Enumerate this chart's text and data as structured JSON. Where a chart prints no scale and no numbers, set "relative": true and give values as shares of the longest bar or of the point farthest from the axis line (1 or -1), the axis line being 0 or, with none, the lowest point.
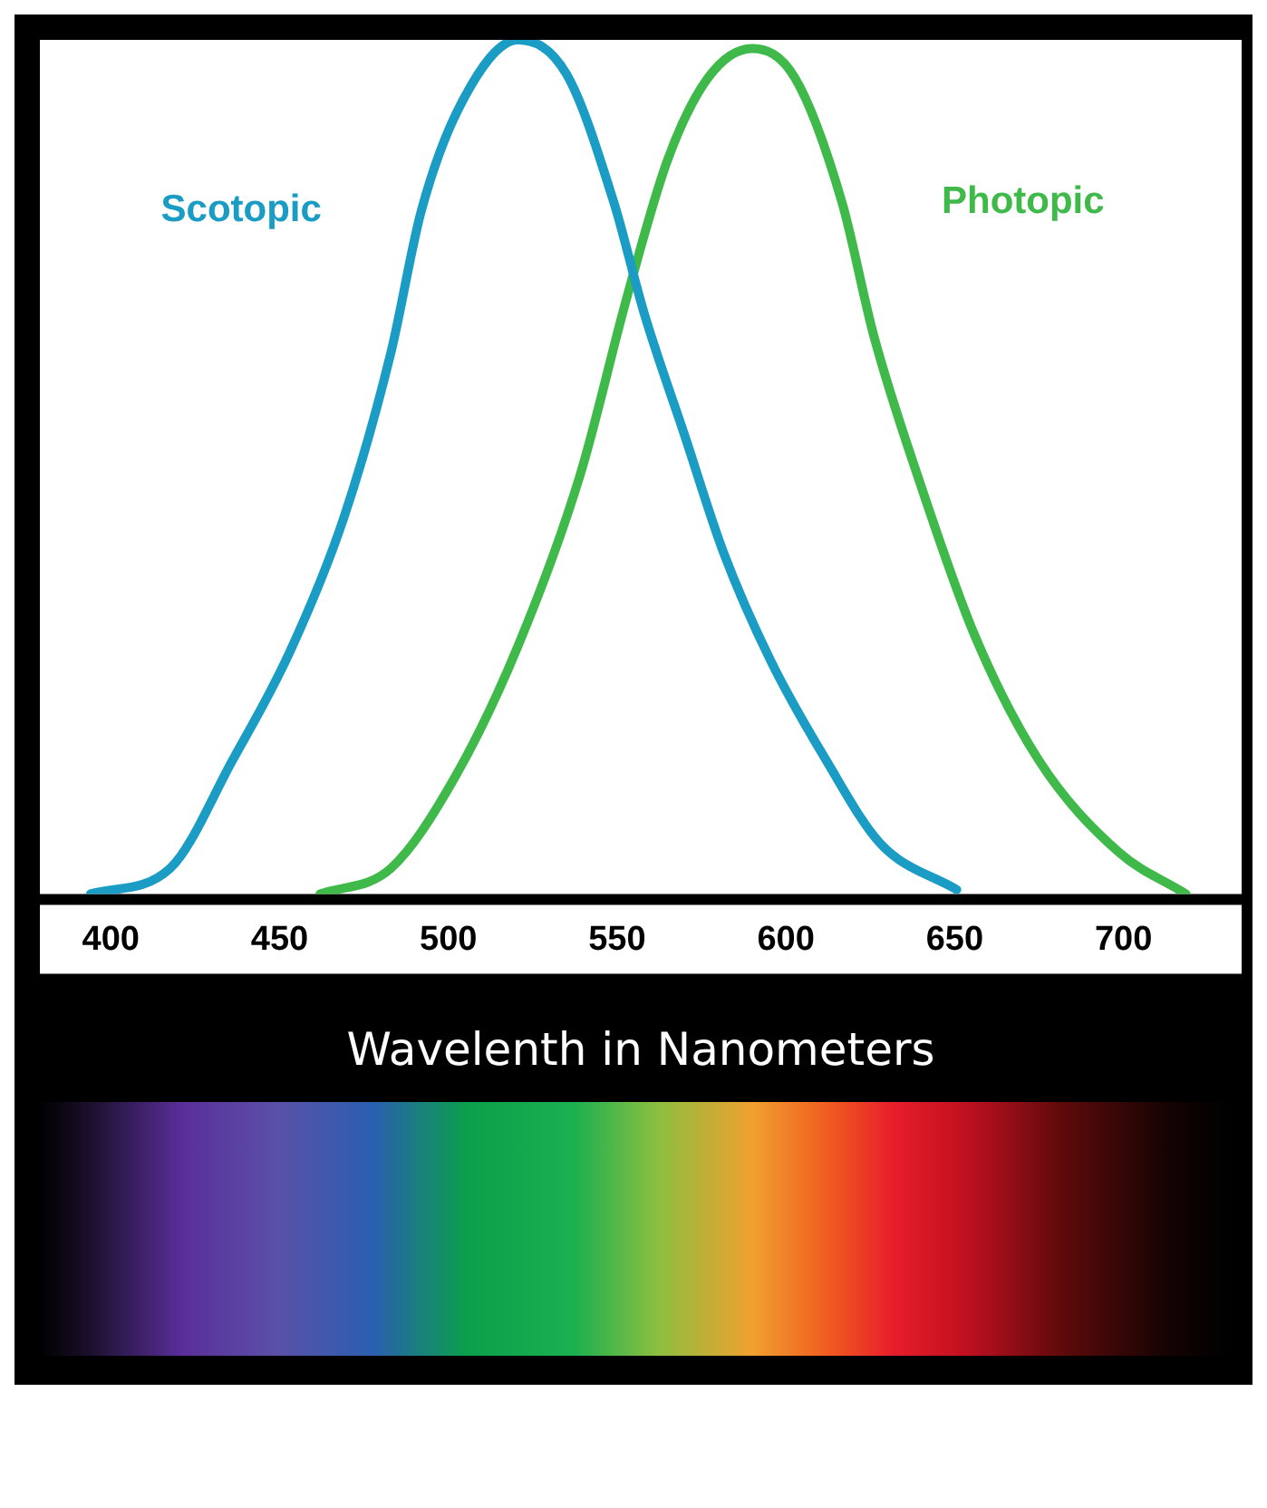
{
  "chart_data": {
    "type": "line",
    "relative": true,
    "xlabel": "Wavelenth in Nanometers",
    "xlim": [
      379,
      735
    ],
    "xticks": [
      400,
      450,
      500,
      550,
      600,
      650,
      700
    ],
    "grid": false,
    "legend": false,
    "marker": "none",
    "line_style": "solid",
    "series": [
      {
        "name": "Scotopic",
        "color": "#1a9cc4",
        "x": [
          394,
          417.6,
          436,
          453,
          469,
          483,
          492,
          504,
          520.6,
          535,
          549,
          558,
          570,
          581.5,
          595.5,
          612,
          628,
          650.6
        ],
        "values": [
          0,
          0.03,
          0.156,
          0.283,
          0.44,
          0.634,
          0.8,
          0.927,
          1,
          0.96,
          0.81,
          0.68,
          0.537,
          0.4,
          0.273,
          0.156,
          0.059,
          0.005
        ]
      },
      {
        "name": "Photopic",
        "color": "#3fb94a",
        "x": [
          462,
          483,
          502,
          520.6,
          539,
          553,
          565,
          577,
          590,
          602.6,
          616.6,
          626,
          640,
          656,
          675,
          698.6,
          718.5
        ],
        "values": [
          0,
          0.03,
          0.137,
          0.29,
          0.49,
          0.7,
          0.86,
          0.956,
          0.99,
          0.956,
          0.81,
          0.654,
          0.478,
          0.302,
          0.156,
          0.049,
          0
        ]
      }
    ]
  }
}
